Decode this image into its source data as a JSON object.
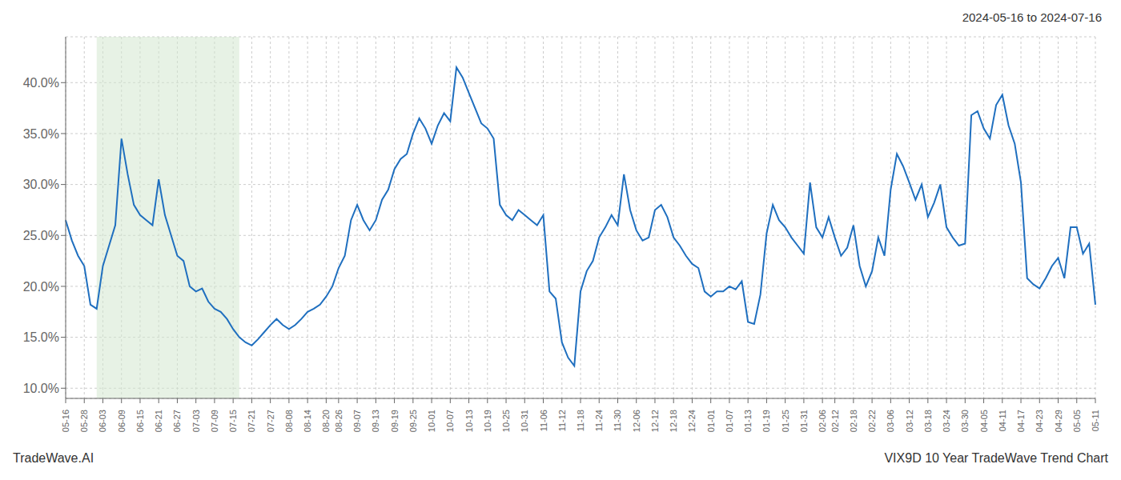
{
  "chart_data": {
    "type": "line",
    "title": "2024-05-16 to 2024-07-16",
    "annotations": [
      "TradeWave.AI",
      "VIX9D 10 Year TradeWave Trend Chart"
    ],
    "color": "#1f6fbf",
    "grid": true,
    "shade": {
      "from": "06-03",
      "to": "07-15",
      "color": "#d4e8d0"
    },
    "ylim": [
      0.09,
      0.445
    ],
    "yticks": [
      {
        "value": 0.1,
        "label": "10.0%"
      },
      {
        "value": 0.15,
        "label": "15.0%"
      },
      {
        "value": 0.2,
        "label": "20.0%"
      },
      {
        "value": 0.25,
        "label": "25.0%"
      },
      {
        "value": 0.3,
        "label": "30.0%"
      },
      {
        "value": 0.35,
        "label": "35.0%"
      },
      {
        "value": 0.4,
        "label": "40.0%"
      }
    ],
    "categories": [
      "05-16",
      null,
      null,
      "05-28",
      null,
      null,
      "06-03",
      null,
      null,
      "06-09",
      null,
      null,
      "06-15",
      null,
      null,
      "06-21",
      null,
      null,
      "06-27",
      null,
      null,
      "07-03",
      null,
      null,
      "07-09",
      null,
      null,
      "07-15",
      null,
      null,
      "07-21",
      null,
      null,
      "07-27",
      null,
      null,
      "08-08",
      null,
      null,
      "08-14",
      null,
      null,
      "08-20",
      null,
      "08-26",
      null,
      null,
      "09-07",
      null,
      null,
      "09-13",
      null,
      null,
      "09-19",
      null,
      null,
      "09-25",
      null,
      null,
      "10-01",
      null,
      null,
      "10-07",
      null,
      null,
      "10-13",
      null,
      null,
      "10-19",
      null,
      null,
      "10-25",
      null,
      null,
      "10-31",
      null,
      null,
      "11-06",
      null,
      null,
      "11-12",
      null,
      null,
      "11-18",
      null,
      null,
      "11-24",
      null,
      null,
      "11-30",
      null,
      null,
      "12-06",
      null,
      null,
      "12-12",
      null,
      null,
      "12-18",
      null,
      null,
      "12-24",
      null,
      null,
      "01-01",
      null,
      null,
      "01-07",
      null,
      null,
      "01-13",
      null,
      null,
      "01-19",
      null,
      null,
      "01-25",
      null,
      null,
      "01-31",
      null,
      null,
      "02-06",
      null,
      "02-12",
      null,
      null,
      "02-18",
      null,
      null,
      "02-22",
      null,
      null,
      "03-06",
      null,
      null,
      "03-12",
      null,
      null,
      "03-18",
      null,
      null,
      "03-24",
      null,
      null,
      "03-30",
      null,
      null,
      "04-05",
      null,
      null,
      "04-11",
      null,
      null,
      "04-17",
      null,
      null,
      "04-23",
      null,
      null,
      "04-29",
      null,
      null,
      "05-05",
      null,
      null,
      "05-11"
    ],
    "values": [
      0.265,
      0.245,
      0.23,
      0.22,
      0.182,
      0.178,
      0.22,
      0.24,
      0.26,
      0.345,
      0.31,
      0.28,
      0.27,
      0.265,
      0.26,
      0.305,
      0.27,
      0.25,
      0.23,
      0.225,
      0.2,
      0.195,
      0.198,
      0.185,
      0.178,
      0.175,
      0.168,
      0.158,
      0.15,
      0.145,
      0.142,
      0.148,
      0.155,
      0.162,
      0.168,
      0.162,
      0.158,
      0.162,
      0.168,
      0.175,
      0.178,
      0.182,
      0.19,
      0.2,
      0.218,
      0.23,
      0.265,
      0.28,
      0.265,
      0.255,
      0.265,
      0.285,
      0.295,
      0.315,
      0.325,
      0.33,
      0.35,
      0.365,
      0.355,
      0.34,
      0.358,
      0.37,
      0.362,
      0.415,
      0.405,
      0.39,
      0.375,
      0.36,
      0.355,
      0.345,
      0.28,
      0.27,
      0.265,
      0.275,
      0.27,
      0.265,
      0.26,
      0.27,
      0.195,
      0.188,
      0.145,
      0.13,
      0.122,
      0.195,
      0.215,
      0.225,
      0.248,
      0.258,
      0.27,
      0.26,
      0.31,
      0.275,
      0.255,
      0.245,
      0.248,
      0.275,
      0.28,
      0.268,
      0.248,
      0.24,
      0.23,
      0.222,
      0.218,
      0.195,
      0.19,
      0.195,
      0.195,
      0.2,
      0.197,
      0.205,
      0.165,
      0.163,
      0.192,
      0.252,
      0.28,
      0.265,
      0.258,
      0.248,
      0.24,
      0.232,
      0.302,
      0.258,
      0.248,
      0.268,
      0.248,
      0.23,
      0.238,
      0.26,
      0.22,
      0.2,
      0.215,
      0.248,
      0.23,
      0.295,
      0.33,
      0.318,
      0.302,
      0.285,
      0.3,
      0.268,
      0.282,
      0.3,
      0.258,
      0.248,
      0.24,
      0.242,
      0.368,
      0.372,
      0.355,
      0.345,
      0.378,
      0.388,
      0.358,
      0.34,
      0.302,
      0.208,
      0.202,
      0.198,
      0.208,
      0.22,
      0.228,
      0.208,
      0.258,
      0.258,
      0.232,
      0.242,
      0.182
    ]
  }
}
